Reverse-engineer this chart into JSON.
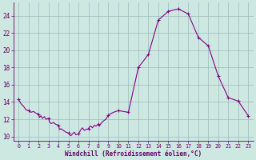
{
  "xlabel": "Windchill (Refroidissement éolien,°C)",
  "background_color": "#cce8e0",
  "line_color": "#880088",
  "grid_color": "#99bbbb",
  "axis_color": "#660066",
  "text_color": "#660066",
  "xlim_min": -0.5,
  "xlim_max": 23.5,
  "ylim_min": 9.5,
  "ylim_max": 25.5,
  "yticks": [
    10,
    12,
    14,
    16,
    18,
    20,
    22,
    24
  ],
  "xticks": [
    0,
    1,
    2,
    3,
    4,
    5,
    6,
    7,
    8,
    9,
    10,
    11,
    12,
    13,
    14,
    15,
    16,
    17,
    18,
    19,
    20,
    21,
    22,
    23
  ],
  "hours_dense": [
    0,
    0.25,
    0.5,
    0.75,
    1,
    1.25,
    1.5,
    1.75,
    2,
    2.1,
    2.25,
    2.4,
    2.6,
    2.75,
    3,
    3.1,
    3.25,
    3.5,
    3.75,
    4,
    4.1,
    4.25,
    4.5,
    4.75,
    5,
    5.1,
    5.25,
    5.4,
    5.6,
    5.75,
    6,
    6.1,
    6.25,
    6.4,
    6.6,
    6.75,
    7,
    7.1,
    7.25,
    7.4,
    7.6,
    7.75,
    8,
    8.1,
    8.25,
    8.5,
    8.75,
    9,
    9.5,
    10,
    11,
    12,
    13,
    14,
    15,
    16,
    17,
    18,
    19,
    20,
    21,
    22,
    23
  ],
  "values_dense": [
    14.3,
    13.8,
    13.5,
    13.1,
    13.0,
    12.8,
    12.9,
    12.7,
    12.6,
    12.2,
    12.4,
    12.1,
    12.3,
    12.0,
    12.1,
    11.7,
    11.5,
    11.6,
    11.4,
    11.3,
    10.8,
    10.9,
    10.7,
    10.5,
    10.4,
    10.2,
    10.1,
    10.3,
    10.5,
    10.2,
    10.3,
    10.5,
    10.8,
    11.0,
    10.7,
    10.8,
    10.9,
    11.1,
    11.2,
    11.0,
    11.3,
    11.2,
    11.4,
    11.2,
    11.5,
    11.8,
    12.0,
    12.5,
    12.8,
    13.0,
    12.8,
    18.0,
    19.5,
    23.5,
    24.5,
    24.8,
    24.2,
    21.5,
    20.5,
    17.0,
    14.5,
    14.1,
    12.4
  ],
  "marker_hours": [
    0,
    1,
    2,
    3,
    4,
    5,
    6,
    7,
    8,
    9,
    10,
    11,
    12,
    13,
    14,
    15,
    16,
    17,
    18,
    19,
    20,
    21,
    22,
    23
  ]
}
